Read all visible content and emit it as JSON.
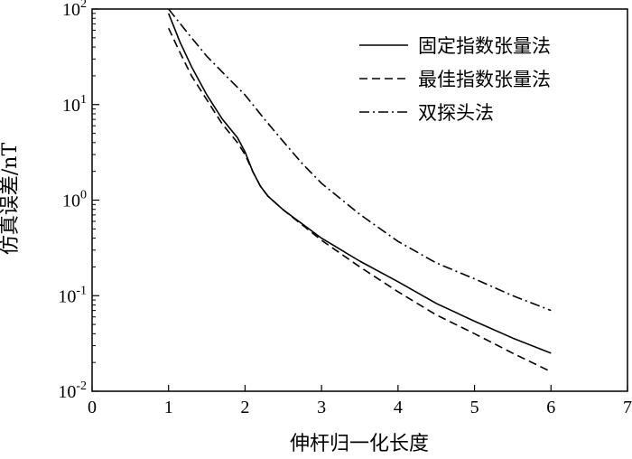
{
  "chart_data": {
    "type": "line",
    "title": "",
    "xlabel": "伸杆归一化长度",
    "ylabel": "仿真误差/nT",
    "x_scale": "linear",
    "y_scale": "log",
    "xlim": [
      0,
      7
    ],
    "ylim": [
      0.01,
      100
    ],
    "x_ticks": [
      "0",
      "1",
      "2",
      "3",
      "4",
      "5",
      "6",
      "7"
    ],
    "y_ticks": [
      {
        "base": "10",
        "exp": "-2",
        "value": 0.01
      },
      {
        "base": "10",
        "exp": "-1",
        "value": 0.1
      },
      {
        "base": "10",
        "exp": "0",
        "value": 1
      },
      {
        "base": "10",
        "exp": "1",
        "value": 10
      },
      {
        "base": "10",
        "exp": "2",
        "value": 100
      }
    ],
    "grid": false,
    "legend_position": "top-right",
    "series": [
      {
        "name": "固定指数张量法",
        "style": "solid",
        "x": [
          1.0,
          1.15,
          1.3,
          1.5,
          1.7,
          1.9,
          2.0,
          2.1,
          2.2,
          2.3,
          2.5,
          3.0,
          3.5,
          4.0,
          4.5,
          5.0,
          5.5,
          6.0
        ],
        "y": [
          90,
          45,
          25,
          12.6,
          7.1,
          4.5,
          3.2,
          2.0,
          1.4,
          1.1,
          0.79,
          0.4,
          0.23,
          0.14,
          0.083,
          0.054,
          0.036,
          0.025
        ]
      },
      {
        "name": "最佳指数张量法",
        "style": "dashed",
        "x": [
          1.0,
          1.15,
          1.3,
          1.5,
          1.7,
          1.9,
          2.0,
          2.1,
          2.2,
          2.3,
          2.5,
          3.0,
          3.5,
          4.0,
          4.5,
          5.0,
          5.5,
          6.0
        ],
        "y": [
          63,
          35,
          20,
          11.2,
          6.3,
          4.0,
          3.0,
          2.0,
          1.4,
          1.1,
          0.79,
          0.38,
          0.2,
          0.11,
          0.063,
          0.04,
          0.025,
          0.016
        ]
      },
      {
        "name": "双探头法",
        "style": "dashdot",
        "x": [
          1.0,
          1.25,
          1.5,
          1.75,
          2.0,
          2.25,
          2.5,
          2.75,
          3.0,
          3.5,
          4.0,
          4.5,
          5.0,
          5.5,
          6.0
        ],
        "y": [
          100,
          56,
          32,
          20,
          12.6,
          7.1,
          4.1,
          2.4,
          1.5,
          0.71,
          0.37,
          0.22,
          0.15,
          0.1,
          0.07
        ]
      }
    ]
  }
}
